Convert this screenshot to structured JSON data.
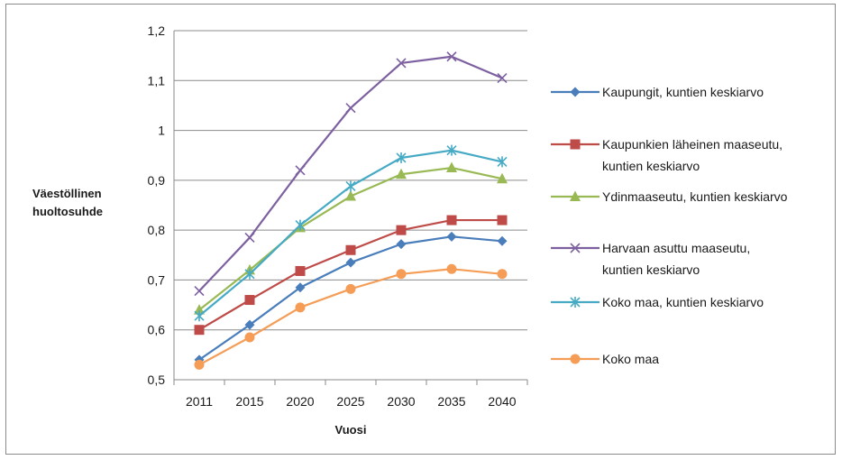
{
  "chart_data": {
    "type": "line",
    "title": "",
    "xlabel": "Vuosi",
    "ylabel": "Väestöllinen huoltosuhde",
    "ylabel_lines": [
      "Väestöllinen",
      "huoltosuhde"
    ],
    "x": [
      "2011",
      "2015",
      "2020",
      "2025",
      "2030",
      "2035",
      "2040"
    ],
    "ylim": [
      0.5,
      1.2
    ],
    "yticks": [
      "0,5",
      "0,6",
      "0,7",
      "0,8",
      "0,9",
      "1",
      "1,1",
      "1,2"
    ],
    "grid": "horizontal",
    "legend_position": "right",
    "series": [
      {
        "name": "Kaupungit, kuntien keskiarvo",
        "name_lines": [
          "Kaupungit, kuntien keskiarvo"
        ],
        "color": "#4a7ebb",
        "marker": "diamond",
        "values": [
          0.54,
          0.61,
          0.685,
          0.735,
          0.772,
          0.787,
          0.778
        ]
      },
      {
        "name": "Kaupunkien läheinen maaseutu, kuntien keskiarvo",
        "name_lines": [
          "Kaupunkien läheinen maaseutu,",
          "kuntien keskiarvo"
        ],
        "color": "#be4b48",
        "marker": "square",
        "values": [
          0.6,
          0.66,
          0.718,
          0.76,
          0.8,
          0.82,
          0.82
        ]
      },
      {
        "name": "Ydinmaaseutu, kuntien keskiarvo",
        "name_lines": [
          "Ydinmaaseutu, kuntien keskiarvo"
        ],
        "color": "#98b954",
        "marker": "triangle",
        "values": [
          0.64,
          0.72,
          0.805,
          0.868,
          0.912,
          0.925,
          0.903
        ]
      },
      {
        "name": "Harvaan asuttu maaseutu, kuntien keskiarvo",
        "name_lines": [
          "Harvaan asuttu maaseutu,",
          "kuntien keskiarvo"
        ],
        "color": "#7d60a0",
        "marker": "x",
        "values": [
          0.678,
          0.785,
          0.92,
          1.045,
          1.135,
          1.148,
          1.105
        ]
      },
      {
        "name": "Koko maa, kuntien keskiarvo",
        "name_lines": [
          "Koko maa, kuntien keskiarvo"
        ],
        "color": "#46aac5",
        "marker": "star",
        "values": [
          0.628,
          0.712,
          0.81,
          0.888,
          0.945,
          0.96,
          0.937
        ]
      },
      {
        "name": "Koko maa",
        "name_lines": [
          "Koko maa"
        ],
        "color": "#f59d56",
        "marker": "circle",
        "values": [
          0.53,
          0.585,
          0.645,
          0.682,
          0.712,
          0.722,
          0.712
        ]
      }
    ]
  }
}
